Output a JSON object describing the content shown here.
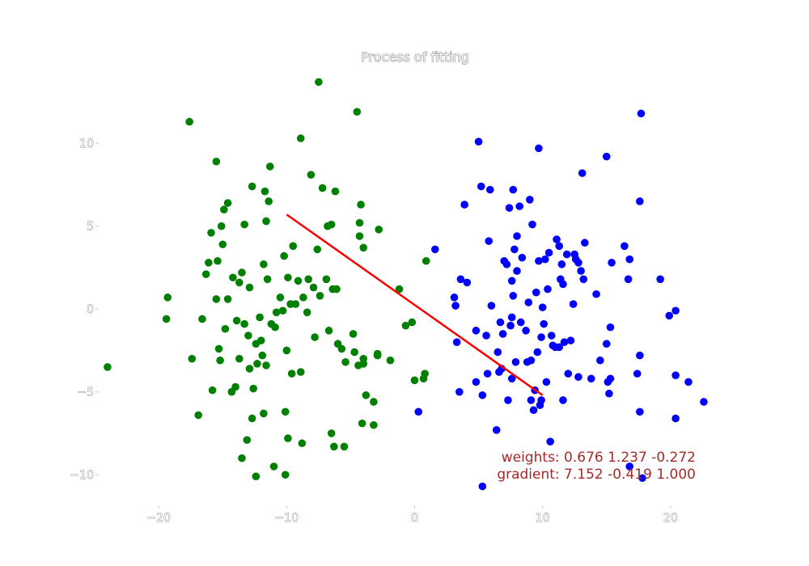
{
  "chart_data": {
    "type": "scatter",
    "title": "Process of fitting",
    "xlabel": "",
    "ylabel": "",
    "xlim": [
      -24.5,
      24.5
    ],
    "ylim": [
      -11.7,
      14.5
    ],
    "xticks": [
      -20,
      -10,
      0,
      10,
      20
    ],
    "xtick_labels": [
      "−20",
      "−10",
      "0",
      "10",
      "20"
    ],
    "yticks": [
      -10,
      -5,
      0,
      5,
      10
    ],
    "ytick_labels": [
      "−10",
      "−5",
      "0",
      "5",
      "10"
    ],
    "grid": false,
    "series": [
      {
        "color": "#008000",
        "points": [
          [
            -24.0,
            -3.5
          ],
          [
            -19.3,
            0.7
          ],
          [
            -19.4,
            -0.6
          ],
          [
            -17.6,
            11.3
          ],
          [
            -17.4,
            -3.0
          ],
          [
            -16.9,
            -6.4
          ],
          [
            -16.6,
            -0.6
          ],
          [
            -16.3,
            2.1
          ],
          [
            -16.1,
            2.8
          ],
          [
            -15.9,
            4.6
          ],
          [
            -15.8,
            -4.9
          ],
          [
            -15.5,
            8.9
          ],
          [
            -15.5,
            0.6
          ],
          [
            -15.4,
            2.9
          ],
          [
            -15.3,
            -2.4
          ],
          [
            -15.2,
            -3.1
          ],
          [
            -15.1,
            5.0
          ],
          [
            -15.0,
            3.9
          ],
          [
            -14.9,
            6.0
          ],
          [
            -14.8,
            -1.2
          ],
          [
            -14.6,
            6.4
          ],
          [
            -14.6,
            0.6
          ],
          [
            -14.3,
            -5.0
          ],
          [
            -14.2,
            1.9
          ],
          [
            -14.0,
            -4.7
          ],
          [
            -13.9,
            -0.7
          ],
          [
            -13.7,
            -3.0
          ],
          [
            -13.7,
            1.6
          ],
          [
            -13.5,
            -9.0
          ],
          [
            -13.5,
            2.2
          ],
          [
            -13.3,
            -0.9
          ],
          [
            -13.3,
            5.1
          ],
          [
            -13.1,
            -7.9
          ],
          [
            -13.0,
            -1.6
          ],
          [
            -12.9,
            -3.6
          ],
          [
            -12.9,
            1.3
          ],
          [
            -12.7,
            7.4
          ],
          [
            -12.7,
            -6.6
          ],
          [
            -12.6,
            -4.8
          ],
          [
            -12.4,
            -2.1
          ],
          [
            -12.4,
            -10.1
          ],
          [
            -12.3,
            -3.3
          ],
          [
            -12.1,
            -0.5
          ],
          [
            -12.0,
            -1.9
          ],
          [
            -11.9,
            -2.8
          ],
          [
            -11.8,
            -6.3
          ],
          [
            -11.8,
            2.7
          ],
          [
            -11.7,
            7.1
          ],
          [
            -11.6,
            5.3
          ],
          [
            -11.6,
            -3.4
          ],
          [
            -11.5,
            1.8
          ],
          [
            -11.4,
            6.5
          ],
          [
            -11.3,
            8.6
          ],
          [
            -11.2,
            -0.9
          ],
          [
            -11.0,
            -9.5
          ],
          [
            -10.9,
            -1.1
          ],
          [
            -10.8,
            -0.2
          ],
          [
            -10.5,
            0.7
          ],
          [
            -10.3,
            -0.1
          ],
          [
            -10.2,
            3.2
          ],
          [
            -10.1,
            -10.0
          ],
          [
            -10.1,
            -6.2
          ],
          [
            -10.0,
            -2.5
          ],
          [
            -9.9,
            1.9
          ],
          [
            -9.9,
            -7.8
          ],
          [
            -9.7,
            0.3
          ],
          [
            -9.6,
            -3.9
          ],
          [
            -9.5,
            3.8
          ],
          [
            -9.3,
            0.3
          ],
          [
            -9.1,
            1.7
          ],
          [
            -8.9,
            -3.8
          ],
          [
            -8.9,
            10.3
          ],
          [
            -8.8,
            -8.1
          ],
          [
            -8.7,
            0.7
          ],
          [
            -8.4,
            -0.2
          ],
          [
            -8.3,
            1.8
          ],
          [
            -8.1,
            8.1
          ],
          [
            -7.9,
            1.3
          ],
          [
            -7.8,
            -1.7
          ],
          [
            -7.6,
            3.6
          ],
          [
            -7.5,
            13.7
          ],
          [
            -7.4,
            0.8
          ],
          [
            -7.2,
            7.3
          ],
          [
            -6.9,
            1.8
          ],
          [
            -6.8,
            5.0
          ],
          [
            -6.7,
            -1.3
          ],
          [
            -6.5,
            5.1
          ],
          [
            -6.5,
            -7.5
          ],
          [
            -6.4,
            1.2
          ],
          [
            -6.3,
            -8.3
          ],
          [
            -6.2,
            7.1
          ],
          [
            -6.1,
            1.2
          ],
          [
            -6.0,
            -2.1
          ],
          [
            -5.7,
            -2.4
          ],
          [
            -5.5,
            -8.3
          ],
          [
            -5.4,
            -3.2
          ],
          [
            -4.8,
            -1.5
          ],
          [
            -4.7,
            -2.6
          ],
          [
            -4.5,
            11.9
          ],
          [
            -4.4,
            -3.4
          ],
          [
            -4.3,
            5.2
          ],
          [
            -4.3,
            4.4
          ],
          [
            -4.2,
            6.3
          ],
          [
            -4.1,
            -6.9
          ],
          [
            -4.0,
            3.7
          ],
          [
            -4.0,
            -3.0
          ],
          [
            -4.0,
            -3.3
          ],
          [
            -3.8,
            -5.2
          ],
          [
            -3.2,
            -7.0
          ],
          [
            -3.2,
            -5.6
          ],
          [
            -2.9,
            -2.7
          ],
          [
            -2.9,
            -2.8
          ],
          [
            -2.8,
            4.8
          ],
          [
            -1.9,
            -3.1
          ],
          [
            -1.2,
            1.2
          ],
          [
            -0.7,
            -1.0
          ],
          [
            -0.2,
            -0.8
          ],
          [
            0.0,
            -4.3
          ],
          [
            0.7,
            -4.2
          ],
          [
            0.8,
            -3.9
          ],
          [
            0.9,
            2.9
          ]
        ]
      },
      {
        "color": "#0000ff",
        "points": [
          [
            0.3,
            -6.2
          ],
          [
            1.6,
            3.6
          ],
          [
            3.1,
            0.7
          ],
          [
            3.2,
            0.2
          ],
          [
            3.3,
            -2.0
          ],
          [
            3.5,
            -5.0
          ],
          [
            3.6,
            1.8
          ],
          [
            3.9,
            6.3
          ],
          [
            4.1,
            1.6
          ],
          [
            4.8,
            -4.4
          ],
          [
            4.8,
            -1.3
          ],
          [
            5.0,
            10.1
          ],
          [
            5.2,
            7.4
          ],
          [
            5.3,
            -10.7
          ],
          [
            5.3,
            -5.2
          ],
          [
            5.6,
            -1.6
          ],
          [
            5.7,
            -3.9
          ],
          [
            5.8,
            4.1
          ],
          [
            5.9,
            7.2
          ],
          [
            6.0,
            0.2
          ],
          [
            6.4,
            -7.3
          ],
          [
            6.5,
            -2.6
          ],
          [
            6.6,
            -3.8
          ],
          [
            6.7,
            -0.8
          ],
          [
            6.8,
            -3.6
          ],
          [
            6.9,
            -1.5
          ],
          [
            7.0,
            2.9
          ],
          [
            7.2,
            2.7
          ],
          [
            7.3,
            -5.5
          ],
          [
            7.4,
            6.1
          ],
          [
            7.5,
            -1.0
          ],
          [
            7.6,
            -0.5
          ],
          [
            7.6,
            -4.2
          ],
          [
            7.6,
            1.7
          ],
          [
            7.7,
            0.8
          ],
          [
            7.7,
            7.2
          ],
          [
            7.8,
            3.6
          ],
          [
            7.9,
            -3.2
          ],
          [
            8.0,
            2.3
          ],
          [
            8.0,
            4.4
          ],
          [
            8.2,
            6.2
          ],
          [
            8.3,
            -0.8
          ],
          [
            8.4,
            3.1
          ],
          [
            8.7,
            -1.3
          ],
          [
            8.8,
            -3.2
          ],
          [
            8.9,
            0.4
          ],
          [
            9.0,
            6.6
          ],
          [
            9.1,
            -3.1
          ],
          [
            9.1,
            -5.5
          ],
          [
            9.2,
            5.1
          ],
          [
            9.3,
            -6.1
          ],
          [
            9.4,
            -4.9
          ],
          [
            9.5,
            1.0
          ],
          [
            9.6,
            -2.6
          ],
          [
            9.7,
            9.7
          ],
          [
            9.7,
            2.9
          ],
          [
            9.8,
            -5.8
          ],
          [
            9.9,
            -5.5
          ],
          [
            9.9,
            -1.7
          ],
          [
            10.0,
            0.1
          ],
          [
            10.1,
            -0.9
          ],
          [
            10.2,
            3.0
          ],
          [
            10.3,
            -4.4
          ],
          [
            10.4,
            1.2
          ],
          [
            10.5,
            3.4
          ],
          [
            10.6,
            -8.0
          ],
          [
            10.7,
            -1.6
          ],
          [
            10.8,
            -2.2
          ],
          [
            11.0,
            -2.3
          ],
          [
            11.1,
            4.2
          ],
          [
            11.3,
            -2.3
          ],
          [
            11.3,
            3.8
          ],
          [
            11.4,
            1.8
          ],
          [
            11.5,
            2.7
          ],
          [
            11.6,
            1.5
          ],
          [
            11.6,
            -5.5
          ],
          [
            11.7,
            -2.0
          ],
          [
            11.9,
            3.3
          ],
          [
            12.0,
            -3.9
          ],
          [
            12.2,
            -1.9
          ],
          [
            12.4,
            0.3
          ],
          [
            12.5,
            3.3
          ],
          [
            12.6,
            3.0
          ],
          [
            12.8,
            2.8
          ],
          [
            12.8,
            -4.1
          ],
          [
            13.0,
            2.3
          ],
          [
            13.1,
            8.2
          ],
          [
            13.2,
            1.8
          ],
          [
            13.3,
            4.0
          ],
          [
            13.8,
            -4.2
          ],
          [
            14.2,
            0.9
          ],
          [
            14.5,
            -3.1
          ],
          [
            15.0,
            -2.1
          ],
          [
            15.0,
            9.2
          ],
          [
            15.1,
            -4.4
          ],
          [
            15.2,
            -5.1
          ],
          [
            15.3,
            -1.1
          ],
          [
            15.3,
            -4.2
          ],
          [
            15.4,
            2.8
          ],
          [
            16.4,
            3.8
          ],
          [
            16.7,
            1.8
          ],
          [
            16.8,
            3.0
          ],
          [
            16.8,
            -9.5
          ],
          [
            17.4,
            -3.9
          ],
          [
            17.6,
            -6.2
          ],
          [
            17.6,
            -2.8
          ],
          [
            17.6,
            6.5
          ],
          [
            17.7,
            11.8
          ],
          [
            17.8,
            -10.2
          ],
          [
            19.2,
            1.8
          ],
          [
            19.9,
            -0.4
          ],
          [
            20.4,
            -0.1
          ],
          [
            20.4,
            -6.6
          ],
          [
            20.4,
            -4.0
          ],
          [
            21.4,
            -4.4
          ],
          [
            22.6,
            -5.6
          ]
        ]
      }
    ],
    "line": {
      "color": "#ff0000",
      "x": [
        -10,
        10
      ],
      "y": [
        5.7,
        -5.2
      ]
    },
    "annotations": [
      {
        "text": "weights: 0.676  1.237  -0.272",
        "color": "#a52a2a"
      },
      {
        "text": "gradient: 7.152  -0.419  1.000",
        "color": "#a52a2a"
      }
    ]
  }
}
